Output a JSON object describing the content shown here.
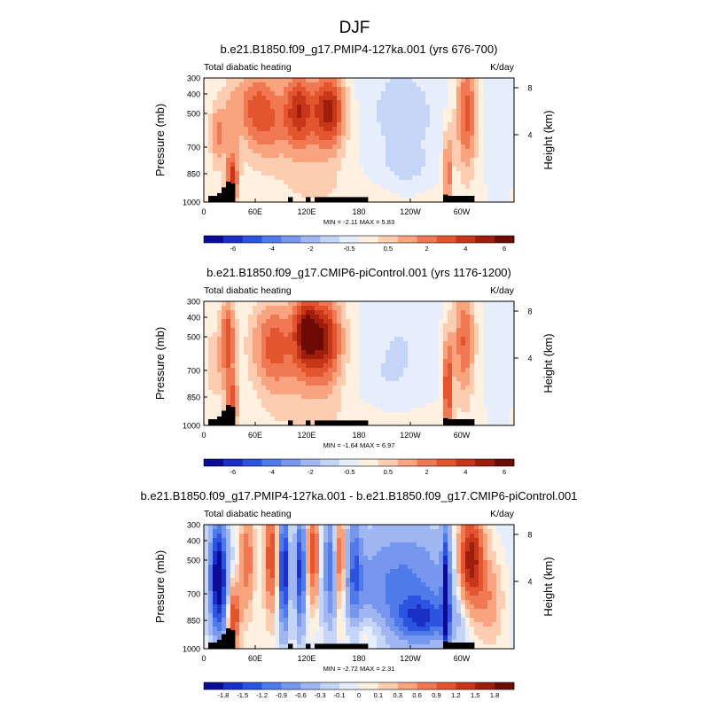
{
  "figure_title": "DJF",
  "chart_data": [
    {
      "type": "heatmap",
      "title": "b.e21.B1850.f09_g17.PMIP4-127ka.001 (yrs 676-700)",
      "left_string": "Total diabatic heating",
      "right_string": "K/day",
      "ylabel": "Pressure (mb)",
      "ylabel_right": "Height (km)",
      "x_ticks": [
        "0",
        "60E",
        "120E",
        "180",
        "120W",
        "60W"
      ],
      "y_ticks": [
        "300",
        "400",
        "500",
        "700",
        "850",
        "1000"
      ],
      "y_ticks_right": [
        "8",
        "4"
      ],
      "min_max_text": "MIN =  -2.11  MAX =   5.83",
      "min": -2.11,
      "max": 5.83,
      "colorbar_levels": [
        "-6",
        "-4",
        "-2",
        "-0.5",
        "0.5",
        "2",
        "4",
        "6"
      ],
      "colorbar_colors": [
        "#0b0b96",
        "#1a2fc6",
        "#2c54e0",
        "#4f7ae9",
        "#7797ef",
        "#9fb6f3",
        "#c4d5f8",
        "#e6eefb",
        "#fff0e0",
        "#fccdb0",
        "#f9a37f",
        "#f07954",
        "#e2552f",
        "#c73618",
        "#9f1d0b",
        "#6e0a04"
      ],
      "field": [
        {
          "lon": 15,
          "p": 620,
          "sx": 6,
          "sp": 130,
          "v": 2.5
        },
        {
          "lon": 33,
          "p": 870,
          "sx": 5,
          "sp": 100,
          "v": 4.2
        },
        {
          "lon": 30,
          "p": 550,
          "sx": 8,
          "sp": 200,
          "v": 1.4
        },
        {
          "lon": 70,
          "p": 520,
          "sx": 20,
          "sp": 180,
          "v": 3.3
        },
        {
          "lon": 55,
          "p": 430,
          "sx": 14,
          "sp": 120,
          "v": 1.3
        },
        {
          "lon": 110,
          "p": 470,
          "sx": 11,
          "sp": 150,
          "v": 3.8
        },
        {
          "lon": 145,
          "p": 470,
          "sx": 13,
          "sp": 150,
          "v": 4.8
        },
        {
          "lon": 128,
          "p": 650,
          "sx": 30,
          "sp": 250,
          "v": 1.4
        },
        {
          "lon": 230,
          "p": 500,
          "sx": 38,
          "sp": 250,
          "v": -1.2
        },
        {
          "lon": 235,
          "p": 800,
          "sx": 15,
          "sp": 70,
          "v": -1.0
        },
        {
          "lon": 283,
          "p": 820,
          "sx": 4,
          "sp": 180,
          "v": 3.2
        },
        {
          "lon": 305,
          "p": 500,
          "sx": 9,
          "sp": 230,
          "v": 4.0
        },
        {
          "lon": 340,
          "p": 620,
          "sx": 11,
          "sp": 250,
          "v": -0.6
        },
        {
          "lon": 180,
          "p": 950,
          "sx": 120,
          "sp": 70,
          "v": 0.3
        }
      ]
    },
    {
      "type": "heatmap",
      "title": "b.e21.B1850.f09_g17.CMIP6-piControl.001 (yrs 1176-1200)",
      "left_string": "Total diabatic heating",
      "right_string": "K/day",
      "ylabel": "Pressure (mb)",
      "ylabel_right": "Height (km)",
      "x_ticks": [
        "0",
        "60E",
        "120E",
        "180",
        "120W",
        "60W"
      ],
      "y_ticks": [
        "300",
        "400",
        "500",
        "700",
        "850",
        "1000"
      ],
      "y_ticks_right": [
        "8",
        "4"
      ],
      "min_max_text": "MIN =  -1.64  MAX =   6.97",
      "min": -1.64,
      "max": 6.97,
      "colorbar_levels": [
        "-6",
        "-4",
        "-2",
        "-0.5",
        "0.5",
        "2",
        "4",
        "6"
      ],
      "colorbar_colors": [
        "#0b0b96",
        "#1a2fc6",
        "#2c54e0",
        "#4f7ae9",
        "#7797ef",
        "#9fb6f3",
        "#c4d5f8",
        "#e6eefb",
        "#fff0e0",
        "#fccdb0",
        "#f9a37f",
        "#f07954",
        "#e2552f",
        "#c73618",
        "#9f1d0b",
        "#6e0a04"
      ],
      "field": [
        {
          "lon": 28,
          "p": 520,
          "sx": 6,
          "sp": 180,
          "v": 4.0
        },
        {
          "lon": 33,
          "p": 870,
          "sx": 5,
          "sp": 100,
          "v": 3.6
        },
        {
          "lon": 12,
          "p": 650,
          "sx": 8,
          "sp": 150,
          "v": 1.5
        },
        {
          "lon": 80,
          "p": 540,
          "sx": 18,
          "sp": 180,
          "v": 3.2
        },
        {
          "lon": 118,
          "p": 460,
          "sx": 10,
          "sp": 150,
          "v": 4.3
        },
        {
          "lon": 140,
          "p": 500,
          "sx": 14,
          "sp": 170,
          "v": 4.6
        },
        {
          "lon": 120,
          "p": 680,
          "sx": 35,
          "sp": 250,
          "v": 1.5
        },
        {
          "lon": 225,
          "p": 560,
          "sx": 28,
          "sp": 220,
          "v": -0.9
        },
        {
          "lon": 200,
          "p": 750,
          "sx": 25,
          "sp": 100,
          "v": -0.4
        },
        {
          "lon": 283,
          "p": 780,
          "sx": 4,
          "sp": 200,
          "v": 4.5
        },
        {
          "lon": 302,
          "p": 520,
          "sx": 9,
          "sp": 230,
          "v": 3.5
        },
        {
          "lon": 340,
          "p": 600,
          "sx": 11,
          "sp": 250,
          "v": -0.6
        },
        {
          "lon": 180,
          "p": 950,
          "sx": 120,
          "sp": 70,
          "v": 0.3
        }
      ]
    },
    {
      "type": "heatmap",
      "title": "b.e21.B1850.f09_g17.PMIP4-127ka.001 - b.e21.B1850.f09_g17.CMIP6-piControl.001",
      "left_string": "Total diabatic heating",
      "right_string": "K/day",
      "ylabel": "Pressure (mb)",
      "ylabel_right": "Height (km)",
      "x_ticks": [
        "0",
        "60E",
        "120E",
        "180",
        "120W",
        "60W"
      ],
      "y_ticks": [
        "300",
        "400",
        "500",
        "700",
        "850",
        "1000"
      ],
      "y_ticks_right": [
        "8",
        "4"
      ],
      "min_max_text": "MIN =  -2.72  MAX =   2.31",
      "min": -2.72,
      "max": 2.31,
      "colorbar_levels": [
        "-1.8",
        "-1.5",
        "-1.2",
        "-0.9",
        "-0.6",
        "-0.3",
        "-0.1",
        "0",
        "0.1",
        "0.3",
        "0.6",
        "0.9",
        "1.2",
        "1.5",
        "1.8"
      ],
      "colorbar_colors": [
        "#0b0b96",
        "#1a2fc6",
        "#2c54e0",
        "#4f7ae9",
        "#7797ef",
        "#9fb6f3",
        "#c4d5f8",
        "#e6eefb",
        "#fff0e0",
        "#fccdb0",
        "#f9a37f",
        "#f07954",
        "#e2552f",
        "#c73618",
        "#9f1d0b",
        "#6e0a04"
      ],
      "field": [
        {
          "lon": 17,
          "p": 600,
          "sx": 7,
          "sp": 220,
          "v": -2.3
        },
        {
          "lon": 35,
          "p": 820,
          "sx": 5,
          "sp": 120,
          "v": 1.2
        },
        {
          "lon": 50,
          "p": 500,
          "sx": 5,
          "sp": 180,
          "v": 0.9
        },
        {
          "lon": 78,
          "p": 480,
          "sx": 5,
          "sp": 200,
          "v": 1.2
        },
        {
          "lon": 93,
          "p": 560,
          "sx": 4,
          "sp": 230,
          "v": -1.9
        },
        {
          "lon": 112,
          "p": 550,
          "sx": 4,
          "sp": 230,
          "v": -1.6
        },
        {
          "lon": 127,
          "p": 470,
          "sx": 5,
          "sp": 180,
          "v": 1.2
        },
        {
          "lon": 148,
          "p": 520,
          "sx": 6,
          "sp": 230,
          "v": -1.1
        },
        {
          "lon": 157,
          "p": 500,
          "sx": 5,
          "sp": 200,
          "v": 1.3
        },
        {
          "lon": 175,
          "p": 550,
          "sx": 6,
          "sp": 230,
          "v": -0.9
        },
        {
          "lon": 230,
          "p": 650,
          "sx": 45,
          "sp": 250,
          "v": -1.0
        },
        {
          "lon": 255,
          "p": 830,
          "sx": 22,
          "sp": 80,
          "v": -1.0
        },
        {
          "lon": 190,
          "p": 900,
          "sx": 20,
          "sp": 90,
          "v": 0.4
        },
        {
          "lon": 281,
          "p": 700,
          "sx": 3,
          "sp": 250,
          "v": -1.8
        },
        {
          "lon": 310,
          "p": 500,
          "sx": 10,
          "sp": 180,
          "v": 1.9
        },
        {
          "lon": 330,
          "p": 720,
          "sx": 10,
          "sp": 150,
          "v": 0.6
        }
      ]
    }
  ]
}
